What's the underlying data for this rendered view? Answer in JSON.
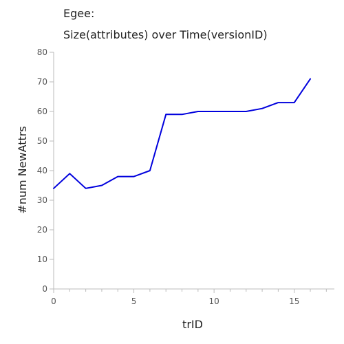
{
  "chart_data": {
    "type": "line",
    "title": "Egee:",
    "subtitle": "Size(attributes) over Time(versionID)",
    "xlabel": "trID",
    "ylabel": "#num NewAttrs",
    "xlim": [
      0,
      17.5
    ],
    "ylim": [
      0,
      80
    ],
    "xticks": [
      0,
      5,
      10,
      15
    ],
    "yticks": [
      0,
      10,
      20,
      30,
      40,
      50,
      60,
      70,
      80
    ],
    "grid": false,
    "series": [
      {
        "color": "#0000dd",
        "x": [
          0,
          1,
          2,
          3,
          4,
          5,
          6,
          7,
          8,
          9,
          10,
          11,
          12,
          13,
          14,
          15,
          16
        ],
        "y": [
          34,
          39,
          34,
          35,
          38,
          38,
          40,
          59,
          59,
          60,
          60,
          60,
          60,
          61,
          63,
          63,
          71
        ]
      }
    ]
  }
}
